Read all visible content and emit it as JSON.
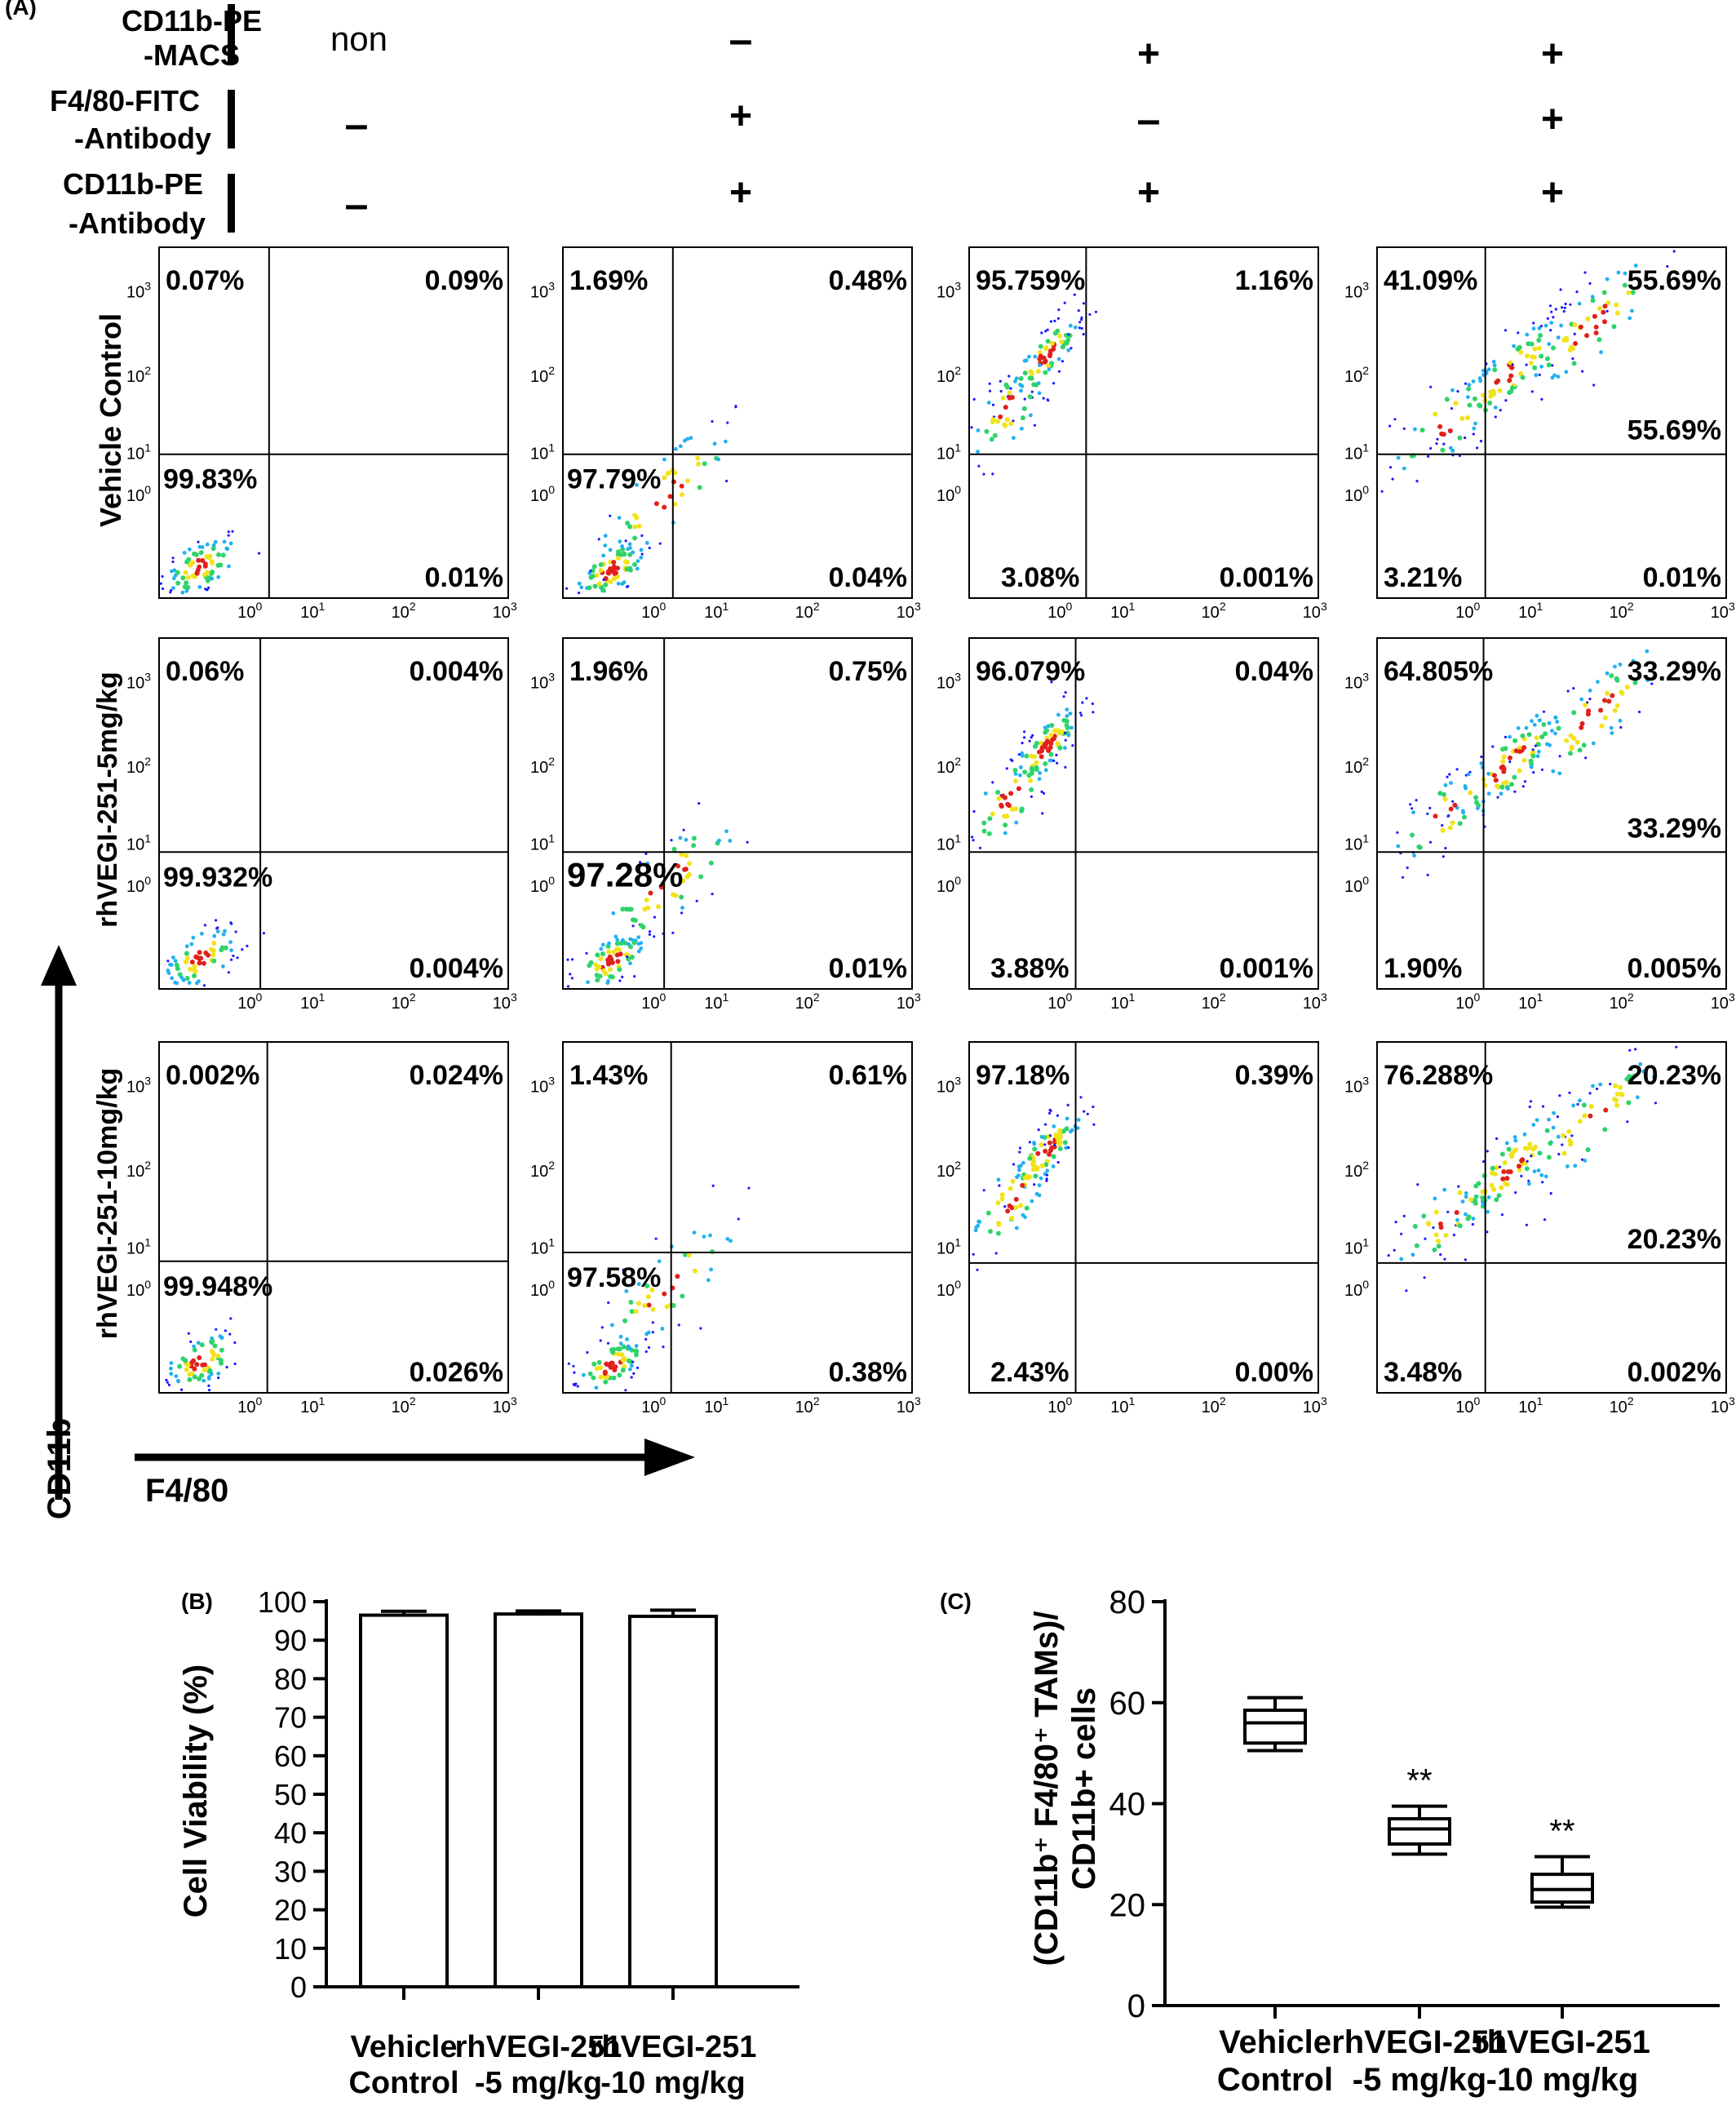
{
  "panel_labels": {
    "a": "(A)",
    "b": "(B)",
    "c": "(C)"
  },
  "header": {
    "rows": [
      {
        "label": [
          "CD11b-PE",
          "-MACS"
        ],
        "signs": [
          "non",
          "–",
          "+",
          "+"
        ]
      },
      {
        "label": [
          "F4/80-FITC",
          "-Antibody"
        ],
        "signs": [
          "–",
          "+",
          "–",
          "+"
        ]
      },
      {
        "label": [
          "CD11b-PE",
          "-Antibody"
        ],
        "signs": [
          "–",
          "+",
          "+",
          "+"
        ]
      }
    ]
  },
  "row_labels": [
    "Vehicle Control",
    "rhVEGI-251-5mg/kg",
    "rhVEGI-251-10mg/kg"
  ],
  "axis_labels": {
    "y": "CD11b",
    "x": "F4/80"
  },
  "colors": {
    "dot_blue": "#1a1aff",
    "dot_cyan": "#22b0f0",
    "dot_green": "#2fd36a",
    "dot_yellow": "#f2e21a",
    "dot_red": "#e0201a"
  },
  "chart_data": [
    {
      "type": "scatter",
      "title": "Flow cytometry quadrant plots",
      "xlabel": "F4/80",
      "ylabel": "CD11b",
      "x_scale": "log",
      "y_scale": "log",
      "x_ticks": [
        "10^0",
        "10^1",
        "10^2",
        "10^3"
      ],
      "y_ticks": [
        "10^0",
        "10^1",
        "10^2",
        "10^3"
      ],
      "plots": [
        {
          "row": "Vehicle Control",
          "col": 1,
          "quadrants": {
            "ul": "0.07%",
            "ur": "0.09%",
            "ll": "99.83%",
            "lr": "0.01%"
          },
          "lr_upper": ""
        },
        {
          "row": "Vehicle Control",
          "col": 2,
          "quadrants": {
            "ul": "1.69%",
            "ur": "0.48%",
            "ll": "97.79%",
            "lr": "0.04%"
          },
          "lr_upper": ""
        },
        {
          "row": "Vehicle Control",
          "col": 3,
          "quadrants": {
            "ul": "95.759%",
            "ur": "1.16%",
            "ll": "3.08%",
            "lr": "0.001%"
          },
          "lr_upper": ""
        },
        {
          "row": "Vehicle Control",
          "col": 4,
          "quadrants": {
            "ul": "41.09%",
            "ur": "55.69%",
            "ll": "3.21%",
            "lr": "0.01%"
          },
          "lr_upper": "55.69%"
        },
        {
          "row": "rhVEGI-251-5mg/kg",
          "col": 1,
          "quadrants": {
            "ul": "0.06%",
            "ur": "0.004%",
            "ll": "99.932%",
            "lr": "0.004%"
          },
          "lr_upper": ""
        },
        {
          "row": "rhVEGI-251-5mg/kg",
          "col": 2,
          "quadrants": {
            "ul": "1.96%",
            "ur": "0.75%",
            "ll": "97.28%",
            "lr": "0.01%"
          },
          "lr_upper": ""
        },
        {
          "row": "rhVEGI-251-5mg/kg",
          "col": 3,
          "quadrants": {
            "ul": "96.079%",
            "ur": "0.04%",
            "ll": "3.88%",
            "lr": "0.001%"
          },
          "lr_upper": ""
        },
        {
          "row": "rhVEGI-251-5mg/kg",
          "col": 4,
          "quadrants": {
            "ul": "64.805%",
            "ur": "33.29%",
            "ll": "1.90%",
            "lr": "0.005%"
          },
          "lr_upper": "33.29%"
        },
        {
          "row": "rhVEGI-251-10mg/kg",
          "col": 1,
          "quadrants": {
            "ul": "0.002%",
            "ur": "0.024%",
            "ll": "99.948%",
            "lr": "0.026%"
          },
          "lr_upper": ""
        },
        {
          "row": "rhVEGI-251-10mg/kg",
          "col": 2,
          "quadrants": {
            "ul": "1.43%",
            "ur": "0.61%",
            "ll": "97.58%",
            "lr": "0.38%"
          },
          "lr_upper": ""
        },
        {
          "row": "rhVEGI-251-10mg/kg",
          "col": 3,
          "quadrants": {
            "ul": "97.18%",
            "ur": "0.39%",
            "ll": "2.43%",
            "lr": "0.00%"
          },
          "lr_upper": ""
        },
        {
          "row": "rhVEGI-251-10mg/kg",
          "col": 4,
          "quadrants": {
            "ul": "76.288%",
            "ur": "20.23%",
            "ll": "3.48%",
            "lr": "0.002%"
          },
          "lr_upper": "20.23%"
        }
      ]
    },
    {
      "type": "bar",
      "title": "",
      "categories": [
        [
          "Vehicle",
          "Control"
        ],
        [
          "rhVEGI-251",
          "-5 mg/kg"
        ],
        [
          "rhVEGI-251",
          "-10 mg/kg"
        ]
      ],
      "values": [
        96.5,
        96.8,
        96.2
      ],
      "errors": [
        1.0,
        0.8,
        1.6
      ],
      "ylabel": "Cell Viability (%)",
      "ylim": [
        0,
        100
      ],
      "yticks": [
        0,
        10,
        20,
        30,
        40,
        50,
        60,
        70,
        80,
        90,
        100
      ]
    },
    {
      "type": "box",
      "title": "",
      "categories": [
        [
          "Vehicle",
          "Control"
        ],
        [
          "rhVEGI-251",
          "-5 mg/kg"
        ],
        [
          "rhVEGI-251",
          "-10 mg/kg"
        ]
      ],
      "boxes": [
        {
          "min": 50.5,
          "q1": 52,
          "median": 56,
          "q3": 58.5,
          "max": 61,
          "annotation": ""
        },
        {
          "min": 30,
          "q1": 32,
          "median": 35,
          "q3": 37,
          "max": 39.5,
          "annotation": "**"
        },
        {
          "min": 19.5,
          "q1": 20.5,
          "median": 23,
          "q3": 26,
          "max": 29.5,
          "annotation": "**"
        }
      ],
      "ylabel_lines": [
        "(CD11b⁺ F4/80⁺ TAMs)/",
        "CD11b+ cells"
      ],
      "ylim": [
        0,
        80
      ],
      "yticks": [
        0,
        20,
        40,
        60,
        80
      ]
    }
  ]
}
